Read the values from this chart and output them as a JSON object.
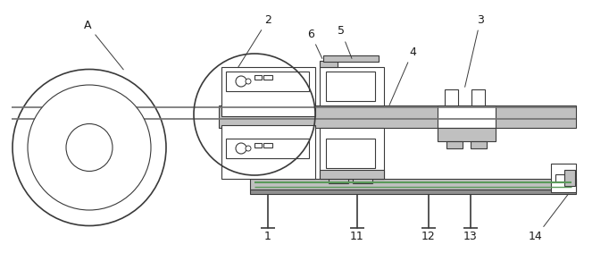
{
  "bg_color": "#ffffff",
  "line_color": "#3a3a3a",
  "label_color": "#1a1a1a",
  "figsize": [
    6.82,
    2.83
  ],
  "dpi": 100,
  "gray_fill": "#c0c0c0",
  "dark_gray": "#909090",
  "green_line": "#5a9a5a",
  "label_fs": 9
}
